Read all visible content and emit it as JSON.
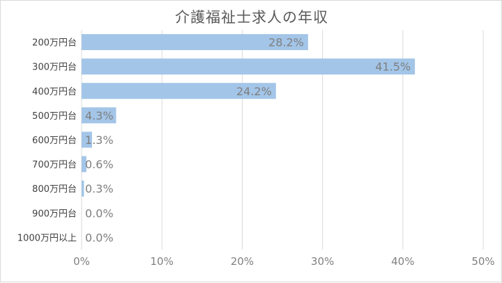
{
  "chart_data": {
    "type": "bar",
    "orientation": "horizontal",
    "title": "介護福祉士求人の年収",
    "categories": [
      "200万円台",
      "300万円台",
      "400万円台",
      "500万円台",
      "600万円台",
      "700万円台",
      "800万円台",
      "900万円台",
      "1000万円以上"
    ],
    "values": [
      28.2,
      41.5,
      24.2,
      4.3,
      1.3,
      0.6,
      0.3,
      0.0,
      0.0
    ],
    "value_labels": [
      "28.2%",
      "41.5%",
      "24.2%",
      "4.3%",
      "1.3%",
      "0.6%",
      "0.3%",
      "0.0%",
      "0.0%"
    ],
    "xlim": [
      0,
      50
    ],
    "x_ticks": [
      "0%",
      "10%",
      "20%",
      "30%",
      "40%",
      "50%"
    ],
    "grid": true,
    "bar_color": "#a3c5e8"
  }
}
